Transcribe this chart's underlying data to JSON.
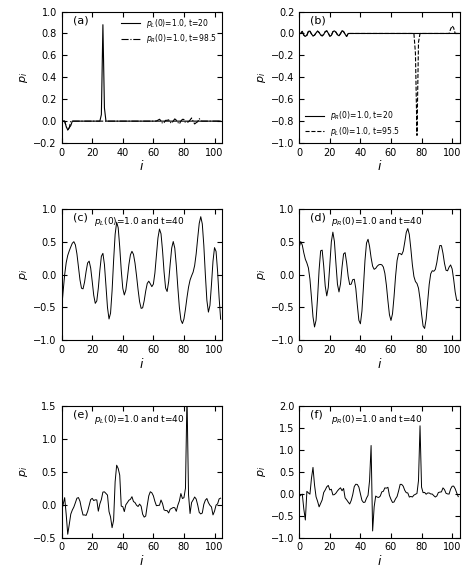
{
  "panels": [
    {
      "label": "(a)",
      "ylim": [
        -0.2,
        1.0
      ],
      "yticks": [
        -0.2,
        0.0,
        0.2,
        0.4,
        0.6,
        0.8,
        1.0
      ],
      "legend1": "p_L(0)=1.0, t=20",
      "legend2": "p_R(0)=1.0, t=98.5",
      "style1": "solid",
      "style2": "dashdot"
    },
    {
      "label": "(b)",
      "ylim": [
        -1.0,
        0.2
      ],
      "yticks": [
        -1.0,
        -0.8,
        -0.6,
        -0.4,
        -0.2,
        0.0,
        0.2
      ],
      "legend1": "p_R(0)=1.0, t=20",
      "legend2": "p_L(0)=1.0, t=95.5",
      "style1": "solid",
      "style2": "dashed"
    },
    {
      "label": "(c)",
      "ylim": [
        -1.0,
        1.0
      ],
      "yticks": [
        -1.0,
        -0.5,
        0.0,
        0.5,
        1.0
      ],
      "annotation": "p_L(0)=1.0 and t=40"
    },
    {
      "label": "(d)",
      "ylim": [
        -1.0,
        1.0
      ],
      "yticks": [
        -1.0,
        -0.5,
        0.0,
        0.5,
        1.0
      ],
      "annotation": "p_R(0)=1.0 and t=40"
    },
    {
      "label": "(e)",
      "ylim": [
        -0.5,
        1.5
      ],
      "yticks": [
        -0.5,
        0.0,
        0.5,
        1.0,
        1.5
      ],
      "annotation": "p_L(0)=1.0 and t=40"
    },
    {
      "label": "(f)",
      "ylim": [
        -1.0,
        2.0
      ],
      "yticks": [
        -1.0,
        -0.5,
        0.0,
        0.5,
        1.0,
        1.5,
        2.0
      ],
      "annotation": "p_R(0)=1.0 and t=40"
    }
  ],
  "n_sites": 105,
  "figsize": [
    4.74,
    5.78
  ],
  "dpi": 100
}
